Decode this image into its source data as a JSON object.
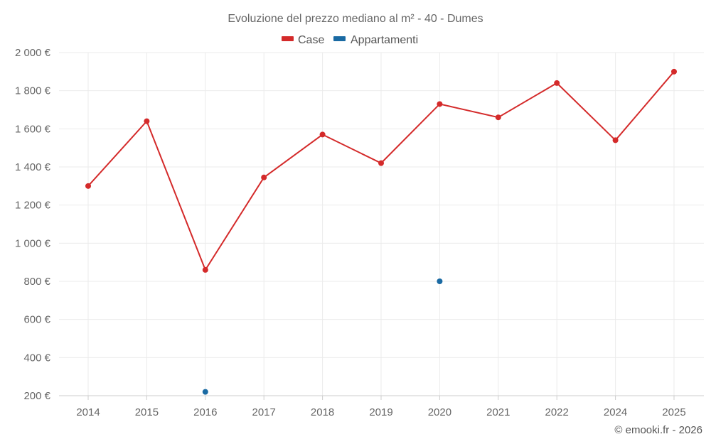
{
  "chart_data": {
    "type": "line",
    "title": "Evoluzione del prezzo mediano al m² - 40 - Dumes",
    "categories": [
      "2014",
      "2015",
      "2016",
      "2017",
      "2018",
      "2019",
      "2020",
      "2021",
      "2022",
      "2024",
      "2025"
    ],
    "series": [
      {
        "name": "Case",
        "color": "#d42a2a",
        "values": [
          1300,
          1640,
          860,
          1345,
          1570,
          1420,
          1730,
          1660,
          1840,
          1540,
          1900
        ]
      },
      {
        "name": "Appartamenti",
        "color": "#1a6aa3",
        "values": [
          null,
          null,
          220,
          null,
          null,
          null,
          800,
          null,
          null,
          null,
          null
        ]
      }
    ],
    "y_ticks": [
      200,
      400,
      600,
      800,
      1000,
      1200,
      1400,
      1600,
      1800,
      2000
    ],
    "y_tick_labels": [
      "200 €",
      "400 €",
      "600 €",
      "800 €",
      "1 000 €",
      "1 200 €",
      "1 400 €",
      "1 600 €",
      "1 800 €",
      "2 000 €"
    ],
    "ylim": [
      200,
      2000
    ],
    "xlabel": "",
    "ylabel": "",
    "grid": true,
    "legend_position": "top-center"
  },
  "credit": "© emooki.fr - 2026"
}
